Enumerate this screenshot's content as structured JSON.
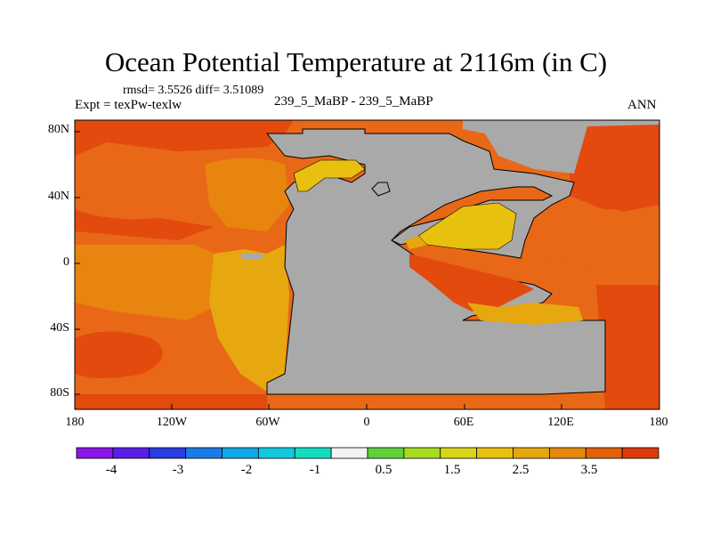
{
  "title": "Ocean Potential Temperature at 2116m (in C)",
  "stats": "rmsd= 3.5526  diff= 3.51089",
  "expt": "Expt = texPw-texlw",
  "case": "239_5_MaBP - 239_5_MaBP",
  "season": "ANN",
  "lat_labels": [
    "80N",
    "40N",
    "0",
    "40S",
    "80S"
  ],
  "lon_labels": [
    "180",
    "120W",
    "60W",
    "0",
    "60E",
    "120E",
    "180"
  ],
  "colorbar": {
    "labels": [
      "-4",
      "-3",
      "-2",
      "-1",
      "0.5",
      "1.5",
      "2.5",
      "3.5"
    ],
    "colors": [
      "#8b16e6",
      "#5a1ee6",
      "#2a3de0",
      "#1a7be6",
      "#12a8e8",
      "#12c9e0",
      "#14dcc0",
      "#f2f2f2",
      "#5fd23a",
      "#a8dc1e",
      "#d8d61a",
      "#e8c010",
      "#e6a80e",
      "#e6880c",
      "#e2600a",
      "#dc3a0a"
    ]
  },
  "field_colors": {
    "land": "#a9a9a9",
    "warmest": "#e24a0e",
    "warm": "#e86818",
    "mid": "#e8850e",
    "cool": "#e6a80e",
    "coolest": "#e8c010"
  }
}
